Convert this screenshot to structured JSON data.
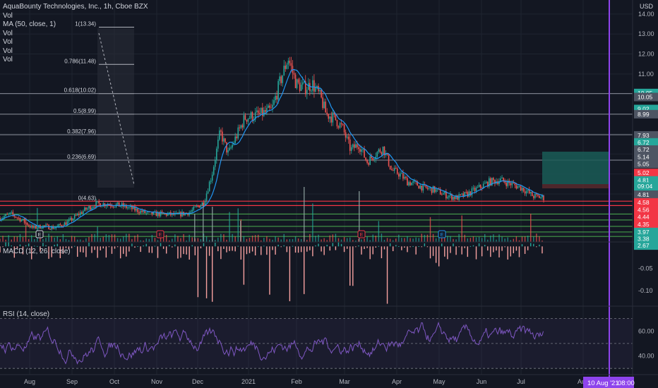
{
  "header": {
    "title": "AquaBounty Technologies, Inc., 1h, Cboe BZX",
    "currency": "USD",
    "legend_lines": [
      "Vol",
      "MA (50, close, 1)",
      "Vol",
      "Vol",
      "Vol",
      "Vol"
    ]
  },
  "panes": {
    "macd_label": "MACD (12, 26, close)",
    "rsi_label": "RSI (14, close)"
  },
  "cursor": {
    "date_label": "10 Aug '21",
    "time_label": "08:00"
  },
  "colors": {
    "background": "#131722",
    "grid": "#1f2430",
    "up": "#26a69a",
    "down": "#ef5350",
    "ma": "#2196f3",
    "support": "#4caf50",
    "resistance": "#f23645",
    "fib": "#b2b5be",
    "rsi": "#7e57c2",
    "vline": "#8e44ec",
    "target": "#1a5c56"
  },
  "chart_data": {
    "type": "candlestick",
    "x_ticks": [
      "Aug",
      "Sep",
      "Oct",
      "Nov",
      "Dec",
      "2021",
      "Feb",
      "Mar",
      "Apr",
      "May",
      "Jun",
      "Jul",
      "Aug"
    ],
    "price_axis": [
      14.0,
      13.0,
      12.0,
      11.0,
      10.0,
      9.0,
      8.0,
      7.0,
      6.0,
      5.0,
      4.0,
      3.0
    ],
    "price_range": [
      2.6,
      14.7
    ],
    "fib_levels": [
      {
        "label": "1(13.34)",
        "value": 13.34
      },
      {
        "label": "0.786(11.48)",
        "value": 11.48
      },
      {
        "label": "0.618(10.02)",
        "value": 10.02
      },
      {
        "label": "0.5(8.99)",
        "value": 8.99
      },
      {
        "label": "0.382(7.96)",
        "value": 7.96
      },
      {
        "label": "0.236(6.69)",
        "value": 6.69
      },
      {
        "label": "0(4.63)",
        "value": 4.63
      }
    ],
    "level_badges": [
      {
        "label": "10.05",
        "value": 10.05,
        "color": "#26a69a"
      },
      {
        "label": "10.05",
        "value": 9.85,
        "color": "#4e5563"
      },
      {
        "label": "9.02",
        "value": 9.25,
        "color": "#26a69a"
      },
      {
        "label": "8.99",
        "value": 8.99,
        "color": "#4e5563"
      },
      {
        "label": "7.93",
        "value": 7.93,
        "color": "#4e5563"
      },
      {
        "label": "6.72",
        "value": 7.58,
        "color": "#26a69a"
      },
      {
        "label": "6.72",
        "value": 7.22,
        "color": "#4e5563"
      },
      {
        "label": "5.14",
        "value": 6.85,
        "color": "#4e5563"
      },
      {
        "label": "5.05",
        "value": 6.5,
        "color": "#4e5563"
      },
      {
        "label": "5.02",
        "value": 6.05,
        "color": "#f23645"
      },
      {
        "label": "4.81",
        "value": 5.68,
        "color": "#26a69a"
      },
      {
        "label": "09:04",
        "value": 5.38,
        "color": "#26a69a"
      },
      {
        "label": "4.81",
        "value": 4.96,
        "color": "#4e5563"
      },
      {
        "label": "4.58",
        "value": 4.58,
        "color": "#f23645"
      },
      {
        "label": "4.56",
        "value": 4.2,
        "color": "#f23645"
      },
      {
        "label": "4.44",
        "value": 3.85,
        "color": "#f23645"
      },
      {
        "label": "4.35",
        "value": 3.48,
        "color": "#f23645"
      },
      {
        "label": "3.97",
        "value": 3.1,
        "color": "#26a69a"
      },
      {
        "label": "3.38",
        "value": 2.76,
        "color": "#26a69a"
      },
      {
        "label": "2.67",
        "value": 2.42,
        "color": "#26a69a"
      }
    ],
    "resistance_lines": [
      4.64,
      4.42
    ],
    "support_lines": [
      4.0,
      3.7,
      3.38,
      3.1,
      2.88
    ],
    "close_points": [
      [
        0,
        3.8
      ],
      [
        0.4,
        4.0
      ],
      [
        0.8,
        3.7
      ],
      [
        1.2,
        3.3
      ],
      [
        1.6,
        3.4
      ],
      [
        2,
        3.3
      ],
      [
        2.5,
        3.6
      ],
      [
        3,
        4.1
      ],
      [
        3.5,
        4.5
      ],
      [
        4,
        4.5
      ],
      [
        4.5,
        4.4
      ],
      [
        5,
        4.2
      ],
      [
        5.5,
        4.0
      ],
      [
        6,
        4.0
      ],
      [
        6.5,
        3.95
      ],
      [
        7,
        4.1
      ],
      [
        7.5,
        4.6
      ],
      [
        7.8,
        6.0
      ],
      [
        8.1,
        8.1
      ],
      [
        8.4,
        7.0
      ],
      [
        8.7,
        7.9
      ],
      [
        9,
        8.8
      ],
      [
        9.3,
        8.9
      ],
      [
        9.6,
        9.0
      ],
      [
        10,
        9.2
      ],
      [
        10.3,
        10.6
      ],
      [
        10.6,
        11.8
      ],
      [
        10.9,
        10.5
      ],
      [
        11.2,
        10.3
      ],
      [
        11.5,
        10.5
      ],
      [
        11.8,
        9.8
      ],
      [
        12,
        9.0
      ],
      [
        12.3,
        8.8
      ],
      [
        12.6,
        8.3
      ],
      [
        12.9,
        7.2
      ],
      [
        13.2,
        7.5
      ],
      [
        13.5,
        6.6
      ],
      [
        13.8,
        7.0
      ],
      [
        14.1,
        7.3
      ],
      [
        14.4,
        6.2
      ],
      [
        14.7,
        6.0
      ],
      [
        15,
        5.6
      ],
      [
        15.3,
        5.5
      ],
      [
        15.6,
        5.3
      ],
      [
        16,
        5.2
      ],
      [
        16.4,
        4.95
      ],
      [
        16.8,
        4.8
      ],
      [
        17.2,
        5.0
      ],
      [
        17.6,
        5.3
      ],
      [
        18,
        5.6
      ],
      [
        18.4,
        5.7
      ],
      [
        18.8,
        5.5
      ],
      [
        19.2,
        5.3
      ],
      [
        19.6,
        4.9
      ],
      [
        20,
        4.81
      ]
    ],
    "x_domain": [
      0,
      20
    ],
    "macd_axis": [
      0.0,
      -0.05,
      -0.1
    ],
    "macd_range": [
      -0.135,
      0.01
    ],
    "rsi_axis": [
      60.0,
      40.0
    ],
    "rsi_range": [
      25,
      80
    ],
    "rsi_bands": [
      70,
      50,
      30
    ]
  }
}
